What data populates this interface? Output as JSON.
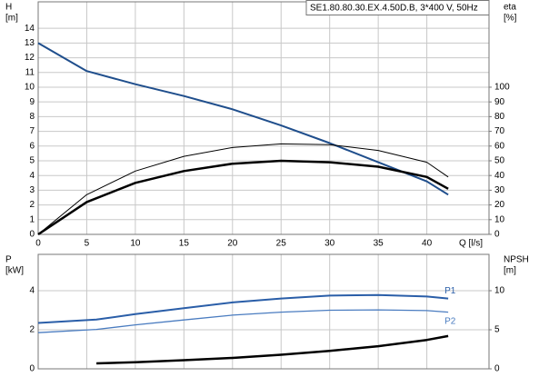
{
  "chart_data": [
    {
      "type": "line",
      "title": "SE1.80.80.30.EX.4.50D.B, 3*400 V, 50Hz",
      "ylabel": [
        "H",
        "[m]"
      ],
      "y2label": [
        "eta",
        "[%]"
      ],
      "xlabel": "Q [l/s]",
      "x": [
        0,
        5,
        10,
        15,
        20,
        25,
        30,
        35,
        40,
        42.2
      ],
      "xlim": [
        0,
        46.4
      ],
      "xticks": [
        0,
        5,
        10,
        15,
        20,
        25,
        30,
        35,
        40
      ],
      "ylim": [
        0,
        15.8
      ],
      "yticks": [
        0,
        1,
        2,
        3,
        4,
        5,
        6,
        7,
        8,
        9,
        10,
        11,
        12,
        13,
        14
      ],
      "y2lim": [
        0,
        158
      ],
      "y2ticks": [
        0,
        10,
        20,
        30,
        40,
        50,
        60,
        70,
        80,
        90,
        100
      ],
      "grid": true,
      "series": [
        {
          "color": "#1f4e8c",
          "values": [
            13,
            11.1,
            10.2,
            9.4,
            8.5,
            7.4,
            6.2,
            4.9,
            3.6,
            2.7
          ]
        },
        {
          "color": "#000000",
          "axis": "y2",
          "values": [
            0,
            27,
            43,
            53,
            59,
            61.5,
            61,
            57,
            49,
            39
          ]
        },
        {
          "color": "#000000",
          "axis": "y2",
          "values": [
            0,
            22,
            35,
            43,
            48,
            50,
            49,
            46,
            39,
            31
          ]
        }
      ]
    },
    {
      "type": "line",
      "ylabel": [
        "P",
        "[kW]"
      ],
      "y2label": [
        "NPSH",
        "[m]"
      ],
      "x": [
        0,
        6,
        10,
        15,
        20,
        25,
        30,
        35,
        40,
        42.2
      ],
      "xlim": [
        0,
        46.4
      ],
      "xticks": [
        0,
        5,
        10,
        15,
        20,
        25,
        30,
        35,
        40
      ],
      "ylim": [
        0,
        5.86
      ],
      "yticks": [
        0,
        2,
        4
      ],
      "y2lim": [
        0,
        14.65
      ],
      "y2ticks": [
        0,
        5,
        10
      ],
      "grid": true,
      "series": [
        {
          "name": "P1",
          "color": "#2a5ea8",
          "values": [
            2.35,
            2.52,
            2.8,
            3.1,
            3.4,
            3.6,
            3.75,
            3.78,
            3.7,
            3.6
          ]
        },
        {
          "name": "P2",
          "color": "#4a7cc0",
          "values": [
            1.85,
            2.02,
            2.25,
            2.5,
            2.75,
            2.9,
            3.0,
            3.02,
            2.98,
            2.9
          ]
        },
        {
          "color": "#000000",
          "axis": "y2",
          "values": [
            null,
            0.7,
            0.85,
            1.1,
            1.4,
            1.8,
            2.3,
            2.9,
            3.7,
            4.2
          ]
        }
      ]
    }
  ]
}
